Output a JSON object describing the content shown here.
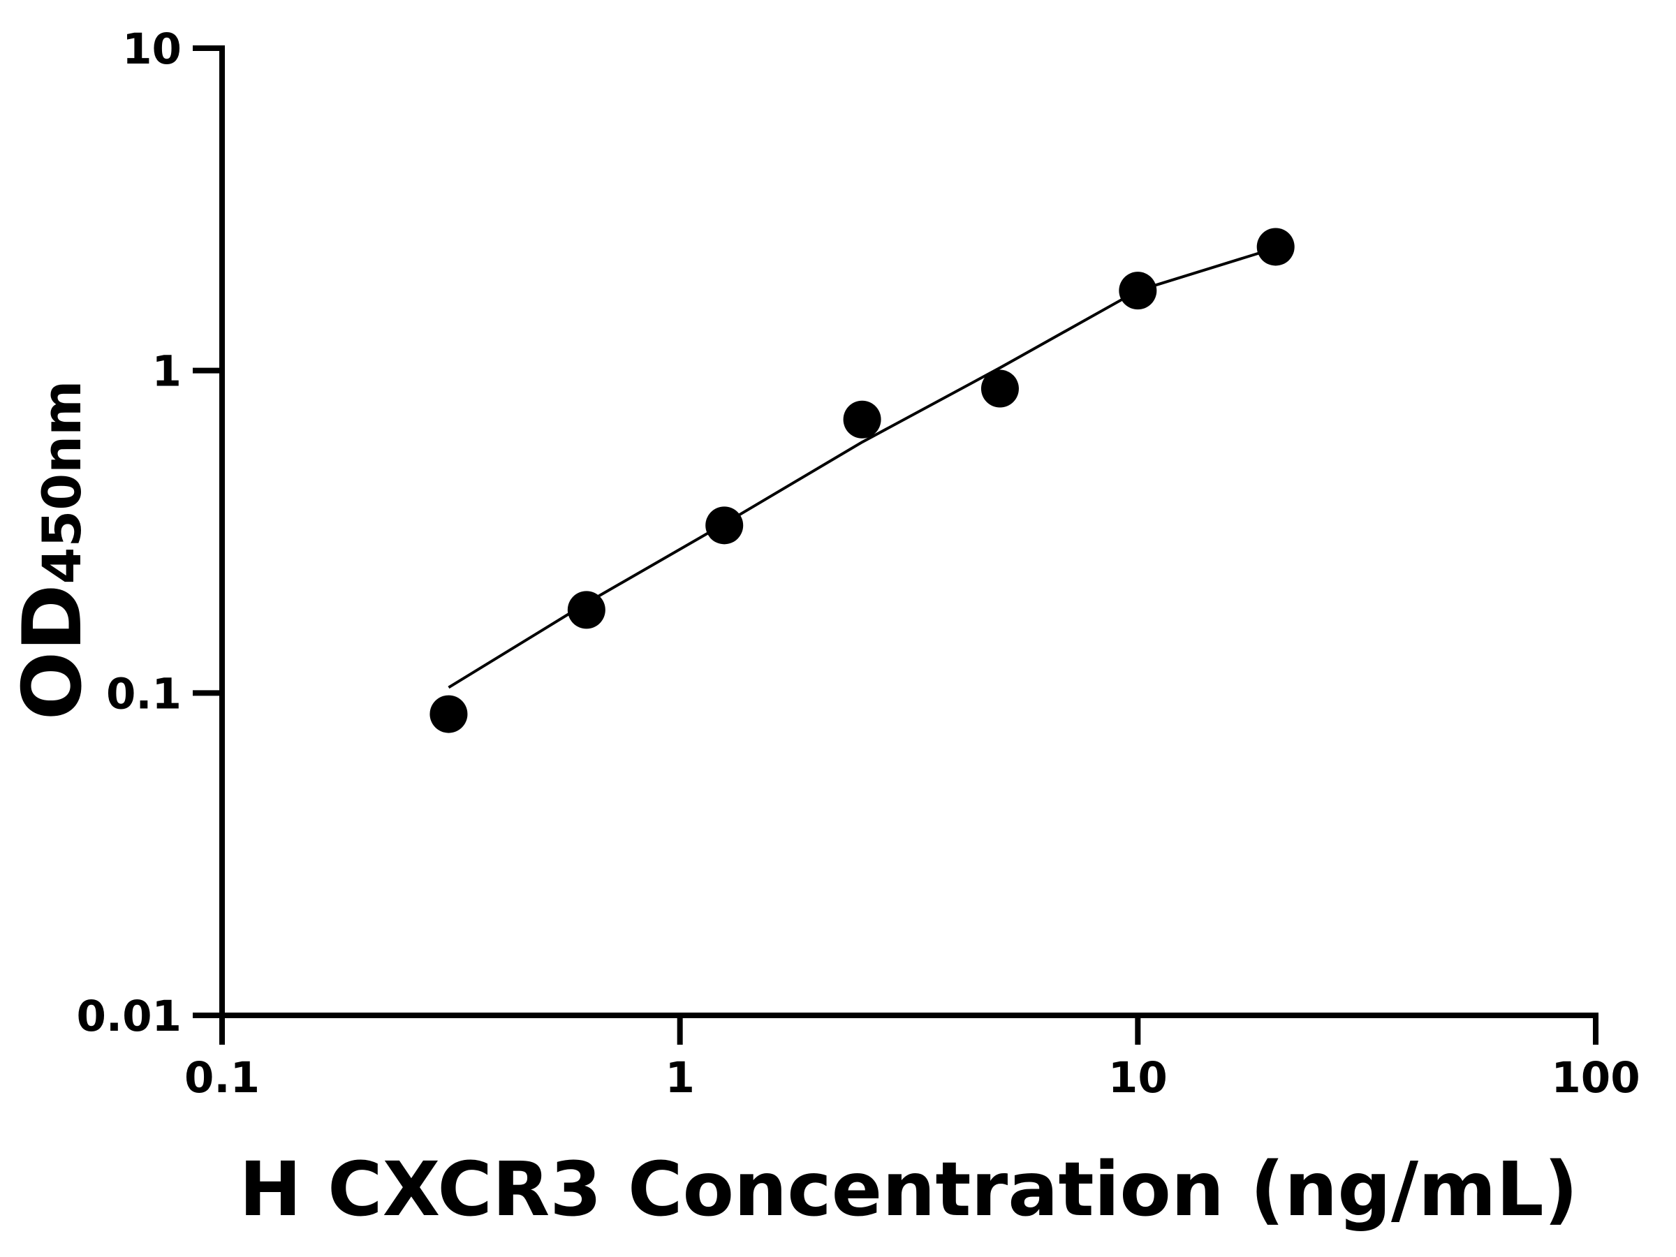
{
  "chart_data": {
    "type": "scatter",
    "x_label": "H CXCR3 Concentration (ng/mL)",
    "y_label": "OD",
    "y_label_sub": "450nm",
    "x": [
      0.3125,
      0.625,
      1.25,
      2.5,
      5,
      10,
      20
    ],
    "series": [
      {
        "mode": "markers",
        "color": "#000000",
        "values": [
          0.086,
          0.181,
          0.331,
          0.705,
          0.879,
          1.77,
          2.42
        ]
      },
      {
        "mode": "line",
        "color": "#000000",
        "values": [
          0.104,
          0.19,
          0.335,
          0.6,
          1.02,
          1.77,
          2.4
        ]
      }
    ],
    "xlim": [
      0.1,
      100
    ],
    "xticks": [
      0.1,
      1,
      10,
      100
    ],
    "ylim": [
      0.01,
      10
    ],
    "yticks": [
      0.01,
      0.1,
      1,
      10
    ],
    "xscale": "log",
    "yscale": "log",
    "grid": false
  }
}
